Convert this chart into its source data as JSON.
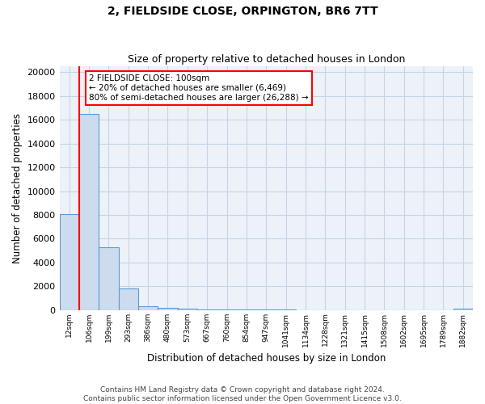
{
  "title_line1": "2, FIELDSIDE CLOSE, ORPINGTON, BR6 7TT",
  "title_line2": "Size of property relative to detached houses in London",
  "xlabel": "Distribution of detached houses by size in London",
  "ylabel": "Number of detached properties",
  "bar_color": "#ccdcee",
  "bar_edge_color": "#5b9bd5",
  "bar_edge_width": 0.8,
  "grid_color": "#c5d5e5",
  "background_color": "#edf2f9",
  "categories": [
    "12sqm",
    "106sqm",
    "199sqm",
    "293sqm",
    "386sqm",
    "480sqm",
    "573sqm",
    "667sqm",
    "760sqm",
    "854sqm",
    "947sqm",
    "1041sqm",
    "1134sqm",
    "1228sqm",
    "1321sqm",
    "1415sqm",
    "1508sqm",
    "1602sqm",
    "1695sqm",
    "1789sqm",
    "1882sqm"
  ],
  "values": [
    8100,
    16500,
    5300,
    1800,
    350,
    170,
    100,
    70,
    50,
    40,
    30,
    20,
    15,
    12,
    10,
    8,
    7,
    6,
    5,
    4,
    100
  ],
  "red_line_x": 1,
  "annotation_line1": "2 FIELDSIDE CLOSE: 100sqm",
  "annotation_line2": "← 20% of detached houses are smaller (6,469)",
  "annotation_line3": "80% of semi-detached houses are larger (26,288) →",
  "annotation_box_color": "white",
  "annotation_box_edge_color": "red",
  "ylim": [
    0,
    20500
  ],
  "yticks": [
    0,
    2000,
    4000,
    6000,
    8000,
    10000,
    12000,
    14000,
    16000,
    18000,
    20000
  ],
  "footer_line1": "Contains HM Land Registry data © Crown copyright and database right 2024.",
  "footer_line2": "Contains public sector information licensed under the Open Government Licence v3.0."
}
